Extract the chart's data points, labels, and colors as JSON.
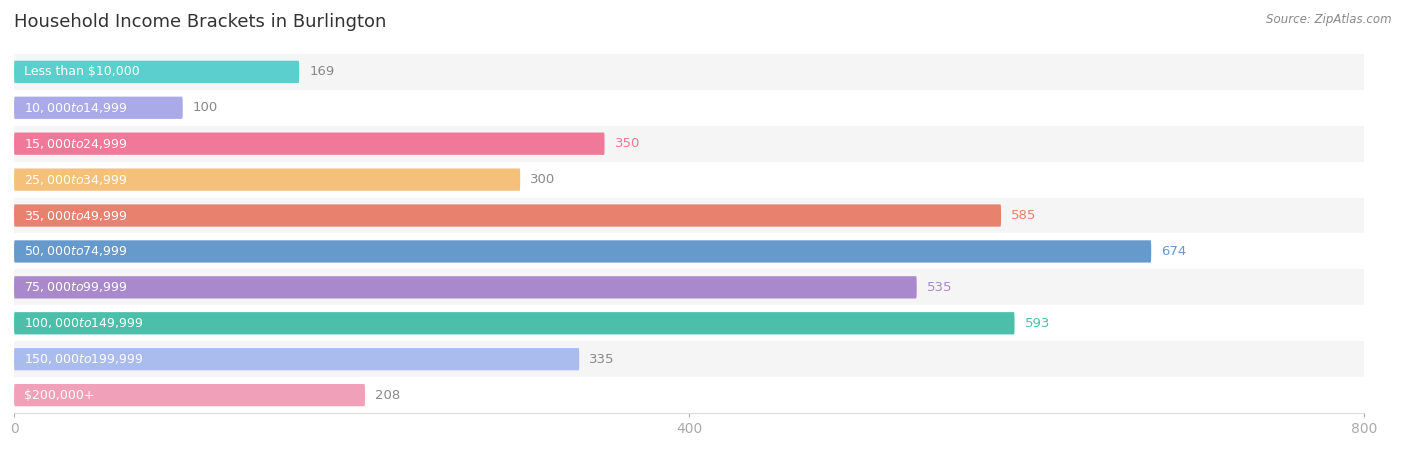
{
  "title": "Household Income Brackets in Burlington",
  "source": "Source: ZipAtlas.com",
  "categories": [
    "Less than $10,000",
    "$10,000 to $14,999",
    "$15,000 to $24,999",
    "$25,000 to $34,999",
    "$35,000 to $49,999",
    "$50,000 to $74,999",
    "$75,000 to $99,999",
    "$100,000 to $149,999",
    "$150,000 to $199,999",
    "$200,000+"
  ],
  "values": [
    169,
    100,
    350,
    300,
    585,
    674,
    535,
    593,
    335,
    208
  ],
  "bar_colors": [
    "#5BCFCE",
    "#AAAAE8",
    "#F07898",
    "#F5C07A",
    "#E8826E",
    "#6699CC",
    "#AA88CC",
    "#4BBFAA",
    "#AABBEE",
    "#F0A0B8"
  ],
  "value_colors": [
    "#888888",
    "#888888",
    "#F07898",
    "#888888",
    "#E8826E",
    "#6699CC",
    "#AA88CC",
    "#4BBFAA",
    "#888888",
    "#888888"
  ],
  "xlim": [
    0,
    800
  ],
  "xticks": [
    0,
    400,
    800
  ],
  "bar_height": 0.62
}
